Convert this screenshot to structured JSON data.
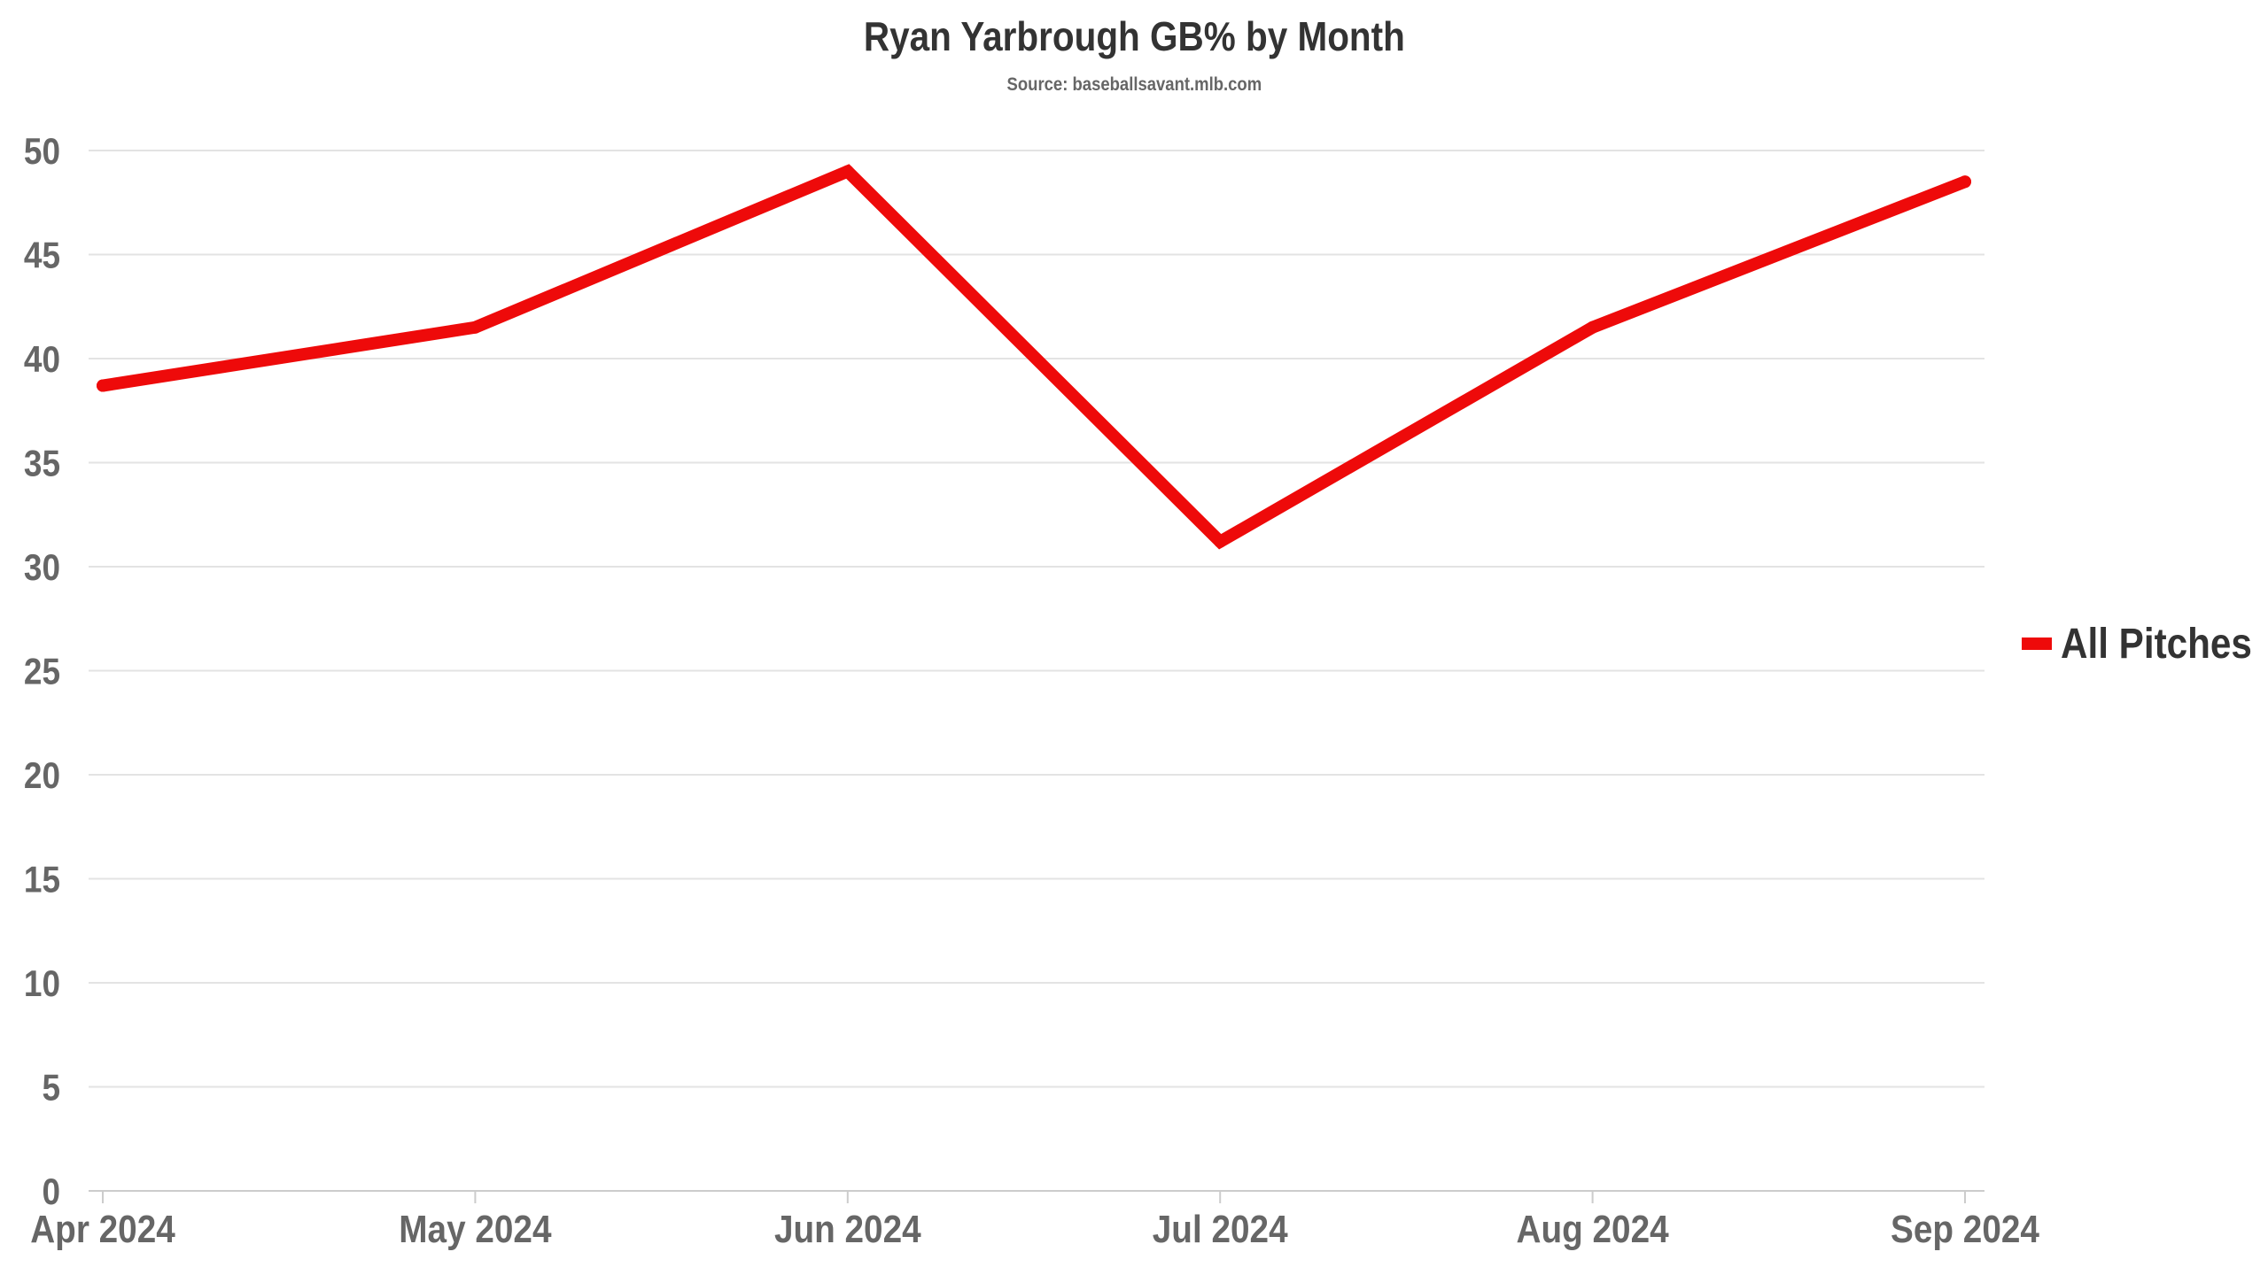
{
  "header": {
    "title": "Ryan Yarbrough GB% by Month",
    "subtitle": "Source: baseballsavant.mlb.com"
  },
  "colors": {
    "series": "#ee0a0a",
    "grid": "#e3e3e3",
    "axis": "#cccccc",
    "tick_text": "#666666",
    "title_text": "#333333",
    "legend_text": "#333333"
  },
  "chart_data": {
    "type": "line",
    "title": "Ryan Yarbrough GB% by Month",
    "subtitle": "Source: baseballsavant.mlb.com",
    "xlabel": "",
    "ylabel": "",
    "categories": [
      "Apr 2024",
      "May 2024",
      "Jun 2024",
      "Jul 2024",
      "Aug 2024",
      "Sep 2024"
    ],
    "series": [
      {
        "name": "All Pitches",
        "color": "#ee0a0a",
        "values": [
          38.7,
          41.5,
          49.0,
          31.2,
          41.5,
          48.5
        ]
      }
    ],
    "ylim": [
      0,
      50
    ],
    "yticks": [
      "0",
      "5",
      "10",
      "15",
      "20",
      "25",
      "30",
      "35",
      "40",
      "45",
      "50"
    ],
    "grid": true,
    "legend_position": "right"
  }
}
